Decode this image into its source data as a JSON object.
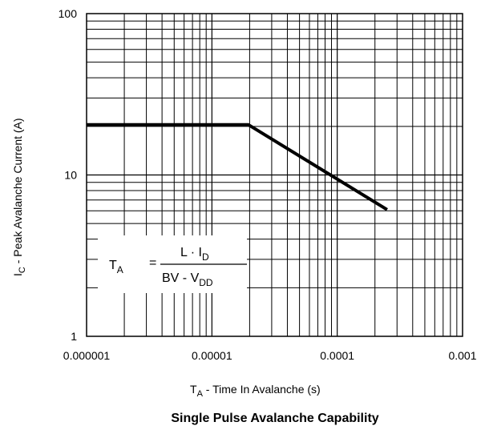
{
  "chart_data": {
    "type": "line",
    "x_scale": "log",
    "y_scale": "log",
    "xlim": [
      1e-06,
      0.001
    ],
    "ylim": [
      1,
      100
    ],
    "grid": true,
    "x_ticks": [
      "0.000001",
      "0.00001",
      "0.0001",
      "0.001"
    ],
    "y_ticks": [
      "1",
      "10",
      "100"
    ],
    "xlabel": {
      "main": "T",
      "sub": "A",
      "rest": " -  Time In Avalanche (s)"
    },
    "ylabel": {
      "main": "I",
      "sub": "C",
      "rest": " -  Peak Avalanche Current (A)"
    },
    "caption": "Single Pulse Avalanche Capability",
    "series": [
      {
        "x": [
          1e-06,
          1.95e-05,
          0.00025
        ],
        "y": [
          20.5,
          20.5,
          6.1
        ],
        "color": "#000000"
      }
    ],
    "formula": {
      "lhs_main": "T",
      "lhs_sub": "A",
      "equals": "=",
      "numerator": "L · I",
      "numerator_sub": "D",
      "denominator": "BV  -  V",
      "denominator_sub": "DD"
    }
  }
}
